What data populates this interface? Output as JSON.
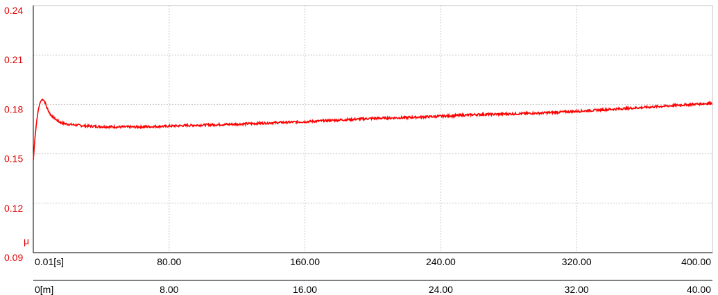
{
  "chart_data": {
    "type": "line",
    "ylabel": "μ",
    "ylim": [
      0.09,
      0.24
    ],
    "y_ticks": [
      "0.24",
      "0.21",
      "0.18",
      "0.15",
      "0.12",
      "0.09"
    ],
    "x_axes": [
      {
        "unit": "[s]",
        "range": [
          0,
          400
        ],
        "ticks": [
          "0.01[s]",
          "80.00",
          "160.00",
          "240.00",
          "320.00",
          "400.00"
        ]
      },
      {
        "unit": "[m]",
        "range": [
          0,
          40
        ],
        "ticks": [
          "0[m]",
          "8.00",
          "16.00",
          "24.00",
          "32.00",
          "40.00"
        ]
      }
    ],
    "grid": true,
    "series": [
      {
        "color": "#ff0000",
        "x": [
          0,
          1,
          2,
          3,
          4,
          5,
          6,
          7,
          8,
          10,
          13,
          16,
          20,
          25,
          30,
          40,
          50,
          60,
          70,
          80,
          90,
          100,
          120,
          140,
          160,
          180,
          200,
          220,
          240,
          260,
          280,
          300,
          320,
          340,
          360,
          380,
          400
        ],
        "y": [
          0.146,
          0.16,
          0.17,
          0.177,
          0.181,
          0.183,
          0.183,
          0.181,
          0.178,
          0.174,
          0.171,
          0.169,
          0.168,
          0.1675,
          0.167,
          0.1665,
          0.1663,
          0.1663,
          0.1665,
          0.1668,
          0.1672,
          0.1675,
          0.168,
          0.1688,
          0.1695,
          0.1705,
          0.1715,
          0.172,
          0.1728,
          0.1738,
          0.1742,
          0.1748,
          0.1758,
          0.177,
          0.1782,
          0.1795,
          0.1808
        ]
      }
    ]
  }
}
